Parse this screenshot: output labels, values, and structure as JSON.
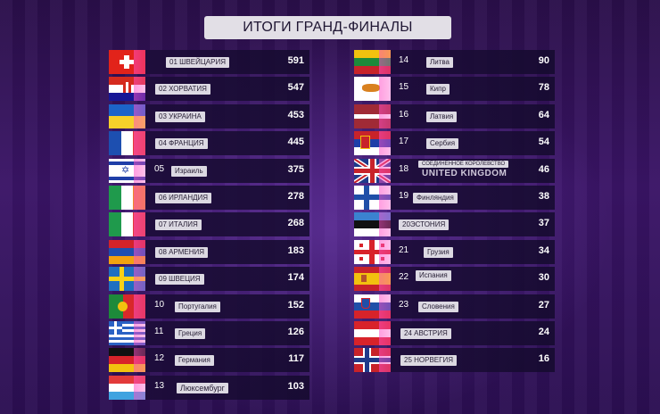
{
  "title": "ИТОГИ ГРАНД-ФИНАЛЫ",
  "left": [
    {
      "label": "01 ШВЕЙЦАРИЯ",
      "points": "591",
      "flag": "switzerland-flag"
    },
    {
      "label": "02 ХОРВАТИЯ",
      "points": "547",
      "flag": "croatia-flag"
    },
    {
      "label": "03 УКРАИНА",
      "points": "453",
      "flag": "ukraine-flag"
    },
    {
      "label": "04 ФРАНЦИЯ",
      "points": "445",
      "flag": "france-flag"
    },
    {
      "rank": "05",
      "label": "Израиль",
      "points": "375",
      "flag": "israel-flag"
    },
    {
      "label": "06 ИРЛАНДИЯ",
      "points": "278",
      "flag": "ireland-flag"
    },
    {
      "label": "07 ИТАЛИЯ",
      "points": "268",
      "flag": "italy-flag"
    },
    {
      "label": "08 АРМЕНИЯ",
      "points": "183",
      "flag": "armenia-flag"
    },
    {
      "label": "09 ШВЕЦИЯ",
      "points": "174",
      "flag": "sweden-flag"
    },
    {
      "rank": "10",
      "label": "Португалия",
      "points": "152",
      "flag": "portugal-flag"
    },
    {
      "rank": "11",
      "label": "Греция",
      "points": "126",
      "flag": "greece-flag"
    },
    {
      "rank": "12",
      "label": "Германия",
      "points": "117",
      "flag": "germany-flag"
    },
    {
      "rank": "13",
      "label": "Люксембург",
      "points": "103",
      "flag": "luxembourg-flag"
    }
  ],
  "right": [
    {
      "rank": "14",
      "label": "Литва",
      "points": "90",
      "flag": "lithuania-flag"
    },
    {
      "rank": "15",
      "label": "Кипр",
      "points": "78",
      "flag": "cyprus-flag"
    },
    {
      "rank": "16",
      "label": "Латвия",
      "points": "64",
      "flag": "latvia-flag"
    },
    {
      "rank": "17",
      "label": "Сербия",
      "points": "54",
      "flag": "serbia-flag"
    },
    {
      "rank": "18",
      "label": "СОЕДИНЕННОЕ КОРОЛЕВСТВО",
      "label2": "UNITED KINGDOM",
      "points": "46",
      "flag": "uk-flag"
    },
    {
      "rank": "19",
      "label": "Финляндия",
      "points": "38",
      "flag": "finland-flag"
    },
    {
      "label": "20ЭСТОНИЯ",
      "points": "37",
      "flag": "estonia-flag"
    },
    {
      "rank": "21",
      "label": "Грузия",
      "points": "34",
      "flag": "georgia-flag"
    },
    {
      "rank": "22",
      "label": "Испания",
      "points": "30",
      "flag": "spain-flag"
    },
    {
      "rank": "23",
      "label": "Словения",
      "points": "27",
      "flag": "slovenia-flag"
    },
    {
      "label": "24 АВСТРИЯ",
      "points": "24",
      "flag": "austria-flag"
    },
    {
      "label": "25 НОРВЕГИЯ",
      "points": "16",
      "flag": "norway-flag"
    }
  ]
}
